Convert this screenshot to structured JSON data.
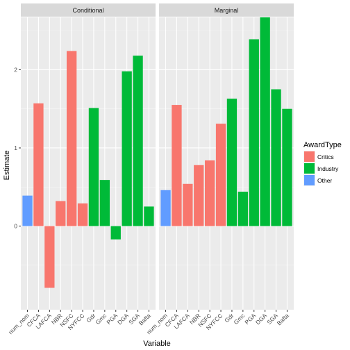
{
  "chart_data": {
    "type": "bar",
    "ylabel": "Estimate",
    "xlabel": "Variable",
    "ylim": [
      -1.07,
      2.67
    ],
    "yticks": [
      0,
      1,
      2
    ],
    "grid": true,
    "legend": {
      "title": "AwardType",
      "placement": "right",
      "entries": [
        {
          "name": "Critics",
          "color": "#F8766D"
        },
        {
          "name": "Industry",
          "color": "#00BA38"
        },
        {
          "name": "Other",
          "color": "#619CFF"
        }
      ]
    },
    "panels": [
      {
        "strip": "Conditional",
        "categories": [
          "num_nom",
          "CFCA",
          "LAFCA",
          "NBR",
          "NSFC",
          "NYFCC",
          "Gdr",
          "Gmc",
          "PGA",
          "DGA",
          "SGA",
          "Bafta"
        ],
        "values": [
          0.39,
          1.57,
          -0.79,
          0.32,
          2.24,
          0.29,
          1.51,
          0.59,
          -0.17,
          1.98,
          2.18,
          0.25
        ],
        "groups": [
          "Other",
          "Critics",
          "Critics",
          "Critics",
          "Critics",
          "Critics",
          "Industry",
          "Industry",
          "Industry",
          "Industry",
          "Industry",
          "Industry"
        ]
      },
      {
        "strip": "Marginal",
        "categories": [
          "num_nom",
          "CFCA",
          "LAFCA",
          "NBR",
          "NSFC",
          "NYFCC",
          "Gdr",
          "Gmc",
          "PGA",
          "DGA",
          "SGA",
          "Bafta"
        ],
        "values": [
          0.46,
          1.55,
          0.54,
          0.78,
          0.84,
          1.31,
          1.63,
          0.44,
          2.39,
          2.67,
          1.75,
          1.5
        ],
        "groups": [
          "Other",
          "Critics",
          "Critics",
          "Critics",
          "Critics",
          "Critics",
          "Industry",
          "Industry",
          "Industry",
          "Industry",
          "Industry",
          "Industry"
        ]
      }
    ]
  }
}
